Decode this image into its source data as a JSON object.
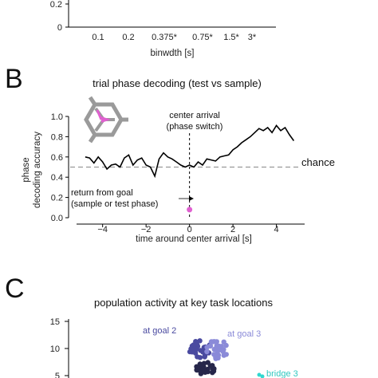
{
  "panel_a": {
    "y_ticks": [
      "0.2",
      "0"
    ],
    "x_ticks": [
      "0.1",
      "0.2",
      "0.375*",
      "0.75*",
      "1.5*",
      "3*"
    ],
    "xlabel": "binwdth [s]"
  },
  "panel_b": {
    "letter": "B",
    "title": "trial phase decoding (test vs sample)",
    "ylabel_line1": "phase",
    "ylabel_line2": "decoding accuracy",
    "xlabel": "time around center arrival [s]",
    "chance_label": "chance",
    "annotation_center_1": "center arrival",
    "annotation_center_2": "(phase switch)",
    "annotation_return_1": "return from goal",
    "annotation_return_2": "(sample or test phase)"
  },
  "panel_c": {
    "letter": "C",
    "title": "population activity at key task locations",
    "y_ticks": [
      "15",
      "10",
      "5"
    ],
    "cluster_labels": [
      "at goal 2",
      "at goal 3",
      "bridge 3"
    ]
  },
  "colors": {
    "line": "#000000",
    "chance": "#888888",
    "marker": "#e060d0",
    "goal2": "#4a4aa0",
    "goal3": "#8a8ad8",
    "bridge3": "#30d8d0",
    "dark_cluster": "#26264a"
  },
  "chart_data": [
    {
      "type": "bar",
      "categories": [
        "0.1",
        "0.2",
        "0.375*",
        "0.75*",
        "1.5*",
        "3*"
      ],
      "xlabel": "binwdth [s]",
      "ylabel": "",
      "ylim": [
        0,
        0.25
      ]
    },
    {
      "type": "line",
      "title": "trial phase decoding (test vs sample)",
      "xlabel": "time around center arrival [s]",
      "ylabel": "phase decoding accuracy",
      "xlim": [
        -5.2,
        5.3
      ],
      "ylim": [
        0,
        1.0
      ],
      "x_ticks": [
        -4,
        -2,
        0,
        2,
        4
      ],
      "y_ticks": [
        0.0,
        0.2,
        0.4,
        0.6,
        0.8,
        1.0
      ],
      "chance": 0.5,
      "marker_point": {
        "x": 0,
        "y": 0.08
      },
      "x": [
        -4.8,
        -4.6,
        -4.4,
        -4.2,
        -4.0,
        -3.8,
        -3.6,
        -3.4,
        -3.2,
        -3.0,
        -2.8,
        -2.6,
        -2.4,
        -2.2,
        -2.0,
        -1.8,
        -1.6,
        -1.4,
        -1.2,
        -1.0,
        -0.8,
        -0.6,
        -0.4,
        -0.2,
        0.0,
        0.2,
        0.4,
        0.6,
        0.8,
        1.0,
        1.2,
        1.4,
        1.6,
        1.8,
        2.0,
        2.2,
        2.4,
        2.6,
        2.8,
        3.0,
        3.2,
        3.4,
        3.6,
        3.8,
        4.0,
        4.2,
        4.4,
        4.6,
        4.8
      ],
      "y": [
        0.6,
        0.59,
        0.54,
        0.6,
        0.55,
        0.48,
        0.52,
        0.53,
        0.5,
        0.59,
        0.62,
        0.52,
        0.57,
        0.59,
        0.52,
        0.5,
        0.41,
        0.58,
        0.64,
        0.6,
        0.58,
        0.55,
        0.52,
        0.5,
        0.52,
        0.5,
        0.55,
        0.52,
        0.58,
        0.57,
        0.56,
        0.6,
        0.61,
        0.62,
        0.67,
        0.7,
        0.74,
        0.77,
        0.8,
        0.84,
        0.88,
        0.86,
        0.89,
        0.84,
        0.91,
        0.86,
        0.89,
        0.82,
        0.76
      ]
    },
    {
      "type": "scatter",
      "title": "population activity at key task locations",
      "ylim": [
        5,
        15
      ],
      "y_ticks": [
        5,
        10,
        15
      ],
      "series": [
        {
          "name": "at goal 2",
          "center": [
            0.0,
            0.0
          ],
          "n": 40
        },
        {
          "name": "at goal 3",
          "center": [
            1.2,
            -0.2
          ],
          "n": 40
        },
        {
          "name": "bridge 3",
          "center": [
            8.5,
            -4.2
          ],
          "n": 2
        }
      ]
    }
  ]
}
